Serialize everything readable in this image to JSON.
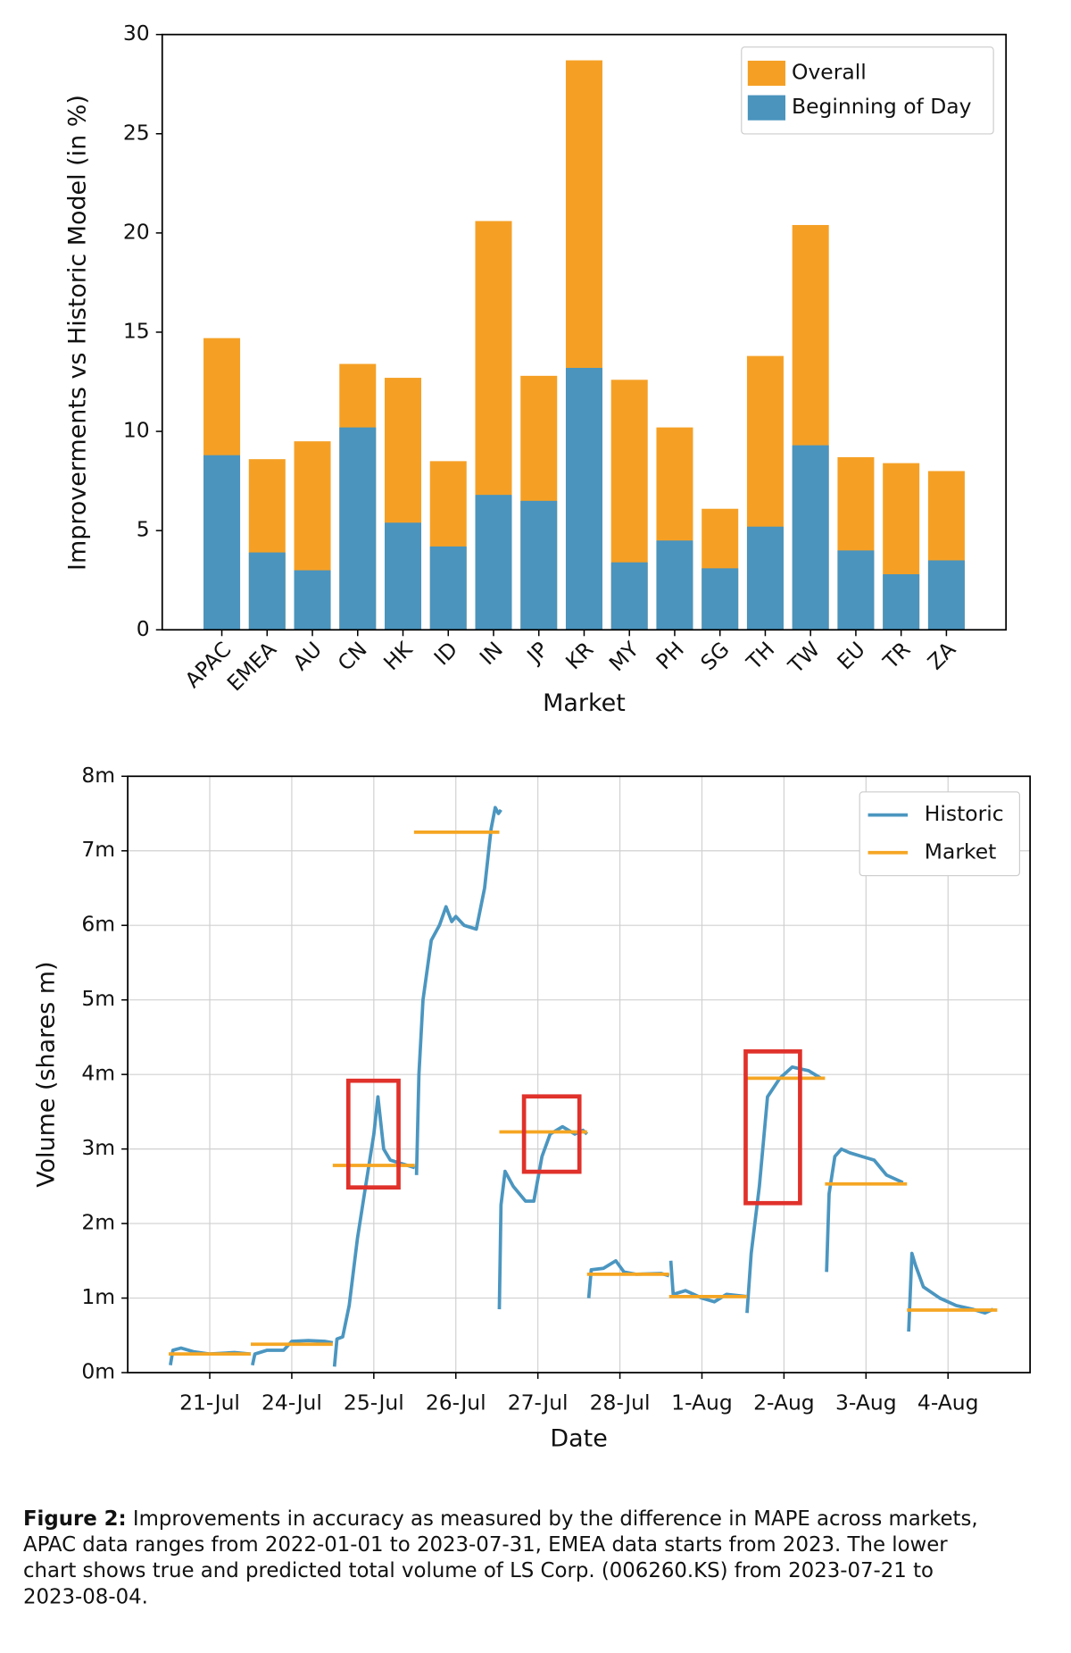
{
  "chart_data": [
    {
      "type": "bar",
      "xlabel": "Market",
      "ylabel": "Improverments vs Historic Model (in %)",
      "categories": [
        "APAC",
        "EMEA",
        "AU",
        "CN",
        "HK",
        "ID",
        "IN",
        "JP",
        "KR",
        "MY",
        "PH",
        "SG",
        "TH",
        "TW",
        "EU",
        "TR",
        "ZA"
      ],
      "series": [
        {
          "name": "Overall",
          "color": "#f5a025",
          "values": [
            14.7,
            8.6,
            9.5,
            13.4,
            12.7,
            8.5,
            20.6,
            12.8,
            28.7,
            12.6,
            10.2,
            6.1,
            13.8,
            20.4,
            8.7,
            8.4,
            8.0
          ]
        },
        {
          "name": "Beginning of Day",
          "color": "#4a94be",
          "values": [
            8.8,
            3.9,
            3.0,
            10.2,
            5.4,
            4.2,
            6.8,
            6.5,
            13.2,
            3.4,
            4.5,
            3.1,
            5.2,
            9.3,
            4.0,
            2.8,
            3.5
          ]
        }
      ],
      "ylim": [
        0,
        30
      ],
      "yticks": [
        0,
        5,
        10,
        15,
        20,
        25,
        30
      ],
      "grid": false,
      "legend": "upper right"
    },
    {
      "type": "line",
      "xlabel": "Date",
      "ylabel": "Volume (shares m)",
      "series": [
        {
          "name": "Historic",
          "color": "#4b96c0",
          "x": [
            0.02,
            0.05,
            0.15,
            0.3,
            0.5,
            0.8,
            1.0,
            null,
            1.02,
            1.05,
            1.2,
            1.4,
            1.5,
            1.7,
            1.9,
            2.0,
            null,
            2.02,
            2.05,
            2.12,
            2.2,
            2.3,
            2.4,
            2.5,
            2.55,
            2.62,
            2.7,
            2.85,
            3.0,
            null,
            3.02,
            3.05,
            3.1,
            3.2,
            3.3,
            3.38,
            3.45,
            3.5,
            3.6,
            3.75,
            3.85,
            3.93,
            3.98,
            4.02,
            4.05,
            null,
            4.03,
            4.05,
            4.1,
            4.2,
            4.35,
            4.45,
            4.55,
            4.65,
            4.8,
            4.95,
            5.05,
            5.1,
            null,
            5.12,
            5.15,
            5.3,
            5.45,
            5.55,
            5.7,
            6.0,
            6.1,
            null,
            6.12,
            6.15,
            6.3,
            6.5,
            6.65,
            6.8,
            7.05,
            null,
            7.05,
            7.1,
            7.2,
            7.3,
            7.45,
            7.6,
            7.8,
            7.95,
            null,
            8.02,
            8.05,
            8.12,
            8.2,
            8.3,
            8.45,
            8.6,
            8.75,
            8.95,
            null,
            9.02,
            9.06,
            9.1,
            9.2,
            9.4,
            9.6,
            9.8,
            9.95,
            10.05
          ],
          "values": [
            0.1,
            0.3,
            0.33,
            0.28,
            0.25,
            0.27,
            0.25,
            null,
            0.1,
            0.25,
            0.3,
            0.3,
            0.42,
            0.43,
            0.42,
            0.4,
            null,
            0.08,
            0.45,
            0.48,
            0.9,
            1.8,
            2.5,
            3.2,
            3.7,
            3.0,
            2.85,
            2.8,
            2.75,
            null,
            2.65,
            4.0,
            5.0,
            5.8,
            6.0,
            6.25,
            6.05,
            6.12,
            6.0,
            5.95,
            6.5,
            7.3,
            7.58,
            7.5,
            7.55,
            null,
            0.85,
            2.25,
            2.7,
            2.5,
            2.3,
            2.3,
            2.9,
            3.2,
            3.3,
            3.2,
            3.25,
            3.2,
            null,
            1.0,
            1.38,
            1.4,
            1.5,
            1.35,
            1.32,
            1.33,
            1.3,
            null,
            1.5,
            1.05,
            1.1,
            1.0,
            0.95,
            1.05,
            1.02,
            null,
            0.8,
            1.6,
            2.5,
            3.7,
            3.95,
            4.1,
            4.05,
            3.95,
            null,
            1.35,
            2.4,
            2.9,
            3.0,
            2.95,
            2.9,
            2.85,
            2.65,
            2.55,
            null,
            0.55,
            1.6,
            1.45,
            1.15,
            1.0,
            0.9,
            0.85,
            0.8,
            0.85
          ]
        },
        {
          "name": "Market",
          "color": "#f5a623",
          "x": [
            0.0,
            1.0,
            null,
            1.0,
            2.0,
            null,
            2.0,
            3.0,
            null,
            2.99,
            4.03,
            null,
            4.03,
            5.1,
            null,
            5.1,
            6.1,
            null,
            6.1,
            7.05,
            null,
            7.05,
            8.0,
            null,
            8.0,
            9.0,
            null,
            9.0,
            10.1
          ],
          "values": [
            0.25,
            0.25,
            null,
            0.38,
            0.38,
            null,
            2.78,
            2.78,
            null,
            7.25,
            7.25,
            null,
            3.23,
            3.23,
            null,
            1.32,
            1.32,
            null,
            1.02,
            1.02,
            null,
            3.95,
            3.95,
            null,
            2.53,
            2.53,
            null,
            0.84,
            0.84
          ]
        }
      ],
      "xlim": [
        -0.5,
        10.5
      ],
      "xticks": [
        {
          "value": 0.5,
          "label": "21-Jul"
        },
        {
          "value": 1.5,
          "label": "24-Jul"
        },
        {
          "value": 2.5,
          "label": "25-Jul"
        },
        {
          "value": 3.5,
          "label": "26-Jul"
        },
        {
          "value": 4.5,
          "label": "27-Jul"
        },
        {
          "value": 5.5,
          "label": "28-Jul"
        },
        {
          "value": 6.5,
          "label": "1-Aug"
        },
        {
          "value": 7.5,
          "label": "2-Aug"
        },
        {
          "value": 8.5,
          "label": "3-Aug"
        },
        {
          "value": 9.5,
          "label": "4-Aug"
        }
      ],
      "ylim": [
        0,
        8
      ],
      "yticks": [
        {
          "value": 0,
          "label": "0m"
        },
        {
          "value": 1,
          "label": "1m"
        },
        {
          "value": 2,
          "label": "2m"
        },
        {
          "value": 3,
          "label": "3m"
        },
        {
          "value": 4,
          "label": "4m"
        },
        {
          "value": 5,
          "label": "5m"
        },
        {
          "value": 6,
          "label": "6m"
        },
        {
          "value": 7,
          "label": "7m"
        },
        {
          "value": 8,
          "label": "8m"
        }
      ],
      "grid": true,
      "legend": "upper right"
    }
  ],
  "caption": {
    "label": "Figure 2:",
    "lines": [
      " Improvements in accuracy as measured by the difference in MAPE across markets,",
      "APAC data ranges from 2022-01-01 to 2023-07-31, EMEA data starts from 2023. The lower",
      "chart shows true and predicted total volume of LS Corp. (006260.KS) from 2023-07-21 to",
      "2023-08-04."
    ]
  }
}
